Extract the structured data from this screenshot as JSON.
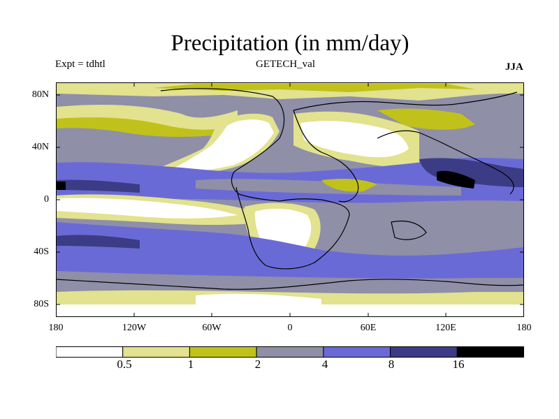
{
  "title": "Precipitation (in mm/day)",
  "experiment_label": "Expt = tdhtl",
  "dataset_label": "GETECH_val",
  "season_label": "JJA",
  "lat_labels": [
    "80N",
    "40N",
    "0",
    "40S",
    "80S"
  ],
  "lon_labels": [
    "180",
    "120W",
    "60W",
    "0",
    "60E",
    "120E",
    "180"
  ],
  "colorbar": {
    "boundaries": [
      "0.5",
      "1",
      "2",
      "4",
      "8",
      "16"
    ],
    "colors": [
      "#ffffff",
      "#e2e28f",
      "#c1c11c",
      "#8f8fa8",
      "#6a6ad6",
      "#3c3c86",
      "#000000"
    ]
  }
}
